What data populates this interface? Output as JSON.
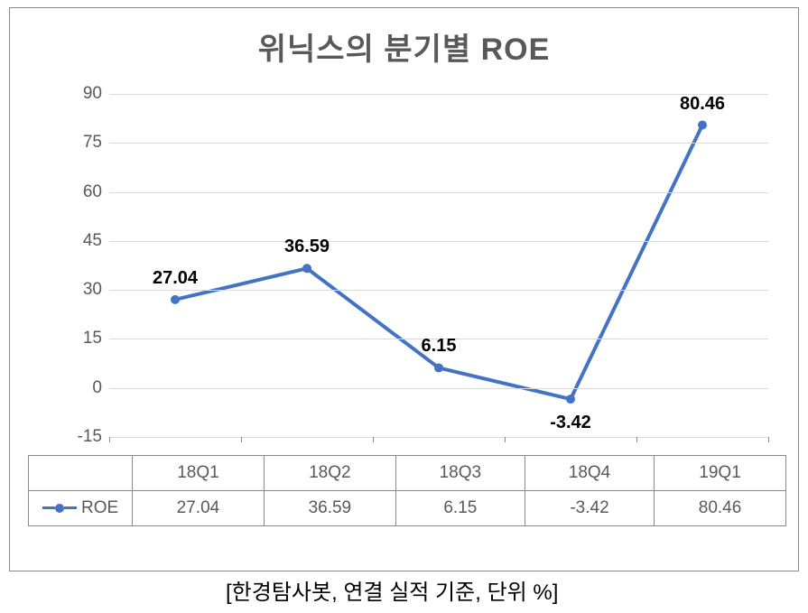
{
  "chart": {
    "type": "line",
    "title": "위닉스의 분기별 ROE",
    "title_fontsize": 34,
    "title_color": "#595959",
    "background_color": "#ffffff",
    "border_color": "#898989",
    "categories": [
      "18Q1",
      "18Q2",
      "18Q3",
      "18Q4",
      "19Q1"
    ],
    "series_name": "ROE",
    "values": [
      27.04,
      36.59,
      6.15,
      -3.42,
      80.46
    ],
    "value_labels": [
      "27.04",
      "36.59",
      "6.15",
      "-3.42",
      "80.46"
    ],
    "line_color": "#4472c4",
    "line_width": 4,
    "marker_color": "#4472c4",
    "marker_size": 10,
    "grid_color": "#d9d9d9",
    "axis_color": "#595959",
    "axis_fontsize": 19,
    "label_fontsize": 20,
    "label_color": "#000000",
    "ylim": [
      -15,
      90
    ],
    "ytick_step": 15,
    "yticks": [
      -15,
      0,
      15,
      30,
      45,
      60,
      75,
      90
    ],
    "data_label_offsets": [
      {
        "dy": -35
      },
      {
        "dy": -35
      },
      {
        "dy": -35
      },
      {
        "dy": 15
      },
      {
        "dy": -35
      }
    ]
  },
  "caption": "[한경탐사봇, 연결 실적 기준, 단위 %]",
  "caption_fontsize": 24,
  "caption_color": "#000000"
}
